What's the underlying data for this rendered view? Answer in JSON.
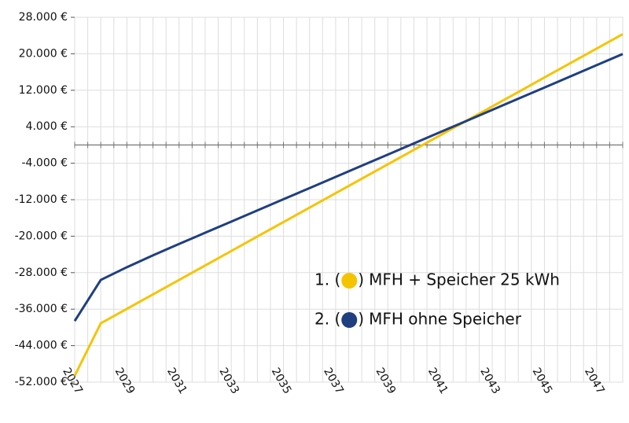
{
  "chart_data": {
    "type": "line",
    "categories": [
      "2027",
      null,
      "2029",
      null,
      "2031",
      null,
      "2033",
      null,
      "2035",
      null,
      "2037",
      null,
      "2039",
      null,
      "2041",
      null,
      "2043",
      null,
      "2045",
      null,
      "2047",
      null
    ],
    "series": [
      {
        "name": "MFH + Speicher 25 kWh",
        "legend_prefix": "1. (",
        "legend_suffix": ")",
        "color": "#f5c400",
        "values": [
          -50600,
          -39100,
          -35930,
          -32760,
          -29590,
          -26420,
          -23250,
          -20080,
          -16910,
          -13740,
          -10570,
          -7400,
          -4230,
          -1060,
          2110,
          5280,
          8450,
          11620,
          14790,
          17960,
          21130,
          24300
        ]
      },
      {
        "name": "MFH ohne Speicher",
        "legend_prefix": "2. (",
        "legend_suffix": ")",
        "color": "#1f3f80",
        "values": [
          -38600,
          -29600,
          -26800,
          -24200,
          -21700,
          -19250,
          -16800,
          -14350,
          -11900,
          -9450,
          -7000,
          -4550,
          -2100,
          350,
          2800,
          5250,
          7700,
          10150,
          12600,
          15050,
          17500,
          19950
        ]
      }
    ],
    "ylim": [
      -52000,
      28000
    ],
    "yticks": [
      {
        "value": 28000,
        "label": "28.000 €"
      },
      {
        "value": 20000,
        "label": "20.000 €"
      },
      {
        "value": 12000,
        "label": "12.000 €"
      },
      {
        "value": 4000,
        "label": "4.000 €"
      },
      {
        "value": -4000,
        "label": "-4.000 €"
      },
      {
        "value": -12000,
        "label": "-12.000 €"
      },
      {
        "value": -20000,
        "label": "-20.000 €"
      },
      {
        "value": -28000,
        "label": "-28.000 €"
      },
      {
        "value": -36000,
        "label": "-36.000 €"
      },
      {
        "value": -44000,
        "label": "-44.000 €"
      },
      {
        "value": -52000,
        "label": "-52.000 €"
      }
    ],
    "grid": true
  }
}
